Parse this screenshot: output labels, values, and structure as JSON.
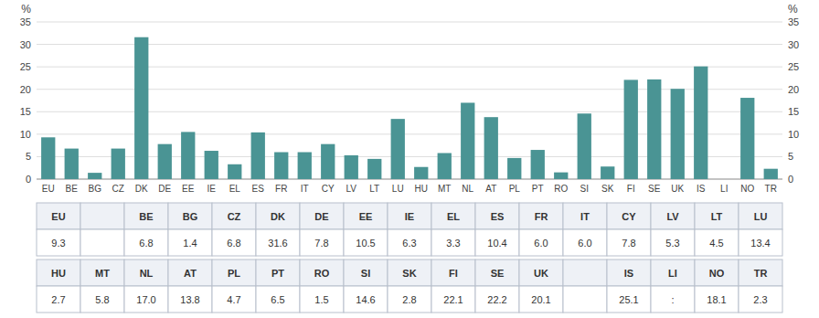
{
  "chart_data": [
    {
      "type": "bar",
      "categories": [
        "EU",
        "BE",
        "BG",
        "CZ",
        "DK",
        "DE",
        "EE",
        "IE",
        "EL",
        "ES",
        "FR",
        "IT",
        "CY",
        "LV",
        "LT",
        "LU",
        "HU",
        "MT",
        "NL",
        "AT",
        "PL",
        "PT",
        "RO",
        "SI",
        "SK",
        "FI",
        "SE",
        "UK",
        "IS",
        "LI",
        "NO",
        "TR"
      ],
      "values": [
        9.3,
        6.8,
        1.4,
        6.8,
        31.6,
        7.8,
        10.5,
        6.3,
        3.3,
        10.4,
        6.0,
        6.0,
        7.8,
        5.3,
        4.5,
        13.4,
        2.7,
        5.8,
        17.0,
        13.8,
        4.7,
        6.5,
        1.5,
        14.6,
        2.8,
        22.1,
        22.2,
        20.1,
        25.1,
        0,
        18.1,
        2.3
      ],
      "color": "#4a9494",
      "ylabel": "%",
      "y2label": "%",
      "ylim": [
        0,
        35
      ],
      "yticks": [
        0,
        5,
        10,
        15,
        20,
        25,
        30,
        35
      ],
      "y2lim": [
        0,
        35
      ],
      "y2ticks": [
        0,
        5,
        10,
        15,
        20,
        25,
        30,
        35
      ],
      "grid": true
    },
    {
      "type": "table",
      "header": [
        "EU",
        null,
        "BE",
        "BG",
        "CZ",
        "DK",
        "DE",
        "EE",
        "IE",
        "EL",
        "ES",
        "FR",
        "IT",
        "CY",
        "LV",
        "LT",
        "LU"
      ],
      "cells": [
        "9.3",
        null,
        "6.8",
        "1.4",
        "6.8",
        "31.6",
        "7.8",
        "10.5",
        "6.3",
        "3.3",
        "10.4",
        "6.0",
        "6.0",
        "7.8",
        "5.3",
        "4.5",
        "13.4"
      ]
    },
    {
      "type": "table",
      "header": [
        "HU",
        "MT",
        "NL",
        "AT",
        "PL",
        "PT",
        "RO",
        "SI",
        "SK",
        "FI",
        "SE",
        "UK",
        null,
        "IS",
        "LI",
        "NO",
        "TR"
      ],
      "cells": [
        "2.7",
        "5.8",
        "17.0",
        "13.8",
        "4.7",
        "6.5",
        "1.5",
        "14.6",
        "2.8",
        "22.1",
        "22.2",
        "20.1",
        null,
        "25.1",
        ":",
        "18.1",
        "2.3"
      ]
    }
  ]
}
